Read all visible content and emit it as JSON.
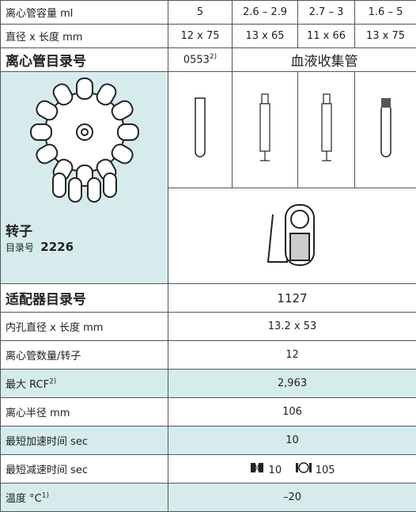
{
  "table": {
    "rows": [
      [
        "离心管容量 ml",
        "5",
        "2.6 – 2.9",
        "2.7 – 3",
        "1.6 – 5"
      ],
      [
        "直径 x 长度 mm",
        "12 x 75",
        "13 x 65",
        "11 x 66",
        "13 x 75"
      ]
    ],
    "catalog_row": {
      "label": "离心管目录号",
      "value": "0553",
      "note": "2)",
      "group": "血液收集管"
    },
    "rotor": {
      "label": "转子",
      "catalog_label": "目录号",
      "catalog": "2226"
    },
    "adapter_row": {
      "label": "适配器目录号",
      "value": "1127"
    },
    "lower_rows": [
      {
        "label": "内孔直径 x 长度 mm",
        "value": "13.2 x 53"
      },
      {
        "label": "离心管数量/转子",
        "value": "12"
      },
      {
        "label": "最大 RCF",
        "note": "2)",
        "value": "2,963"
      },
      {
        "label": "离心半径 mm",
        "value": "106"
      },
      {
        "label": "最短加速时间 sec",
        "value": "10"
      }
    ],
    "decel_row": {
      "label": "最短减速时间 sec",
      "values": [
        "10",
        "105"
      ]
    },
    "temp_row": {
      "label": "温度 °C",
      "note": "1)",
      "value": "–20"
    }
  }
}
